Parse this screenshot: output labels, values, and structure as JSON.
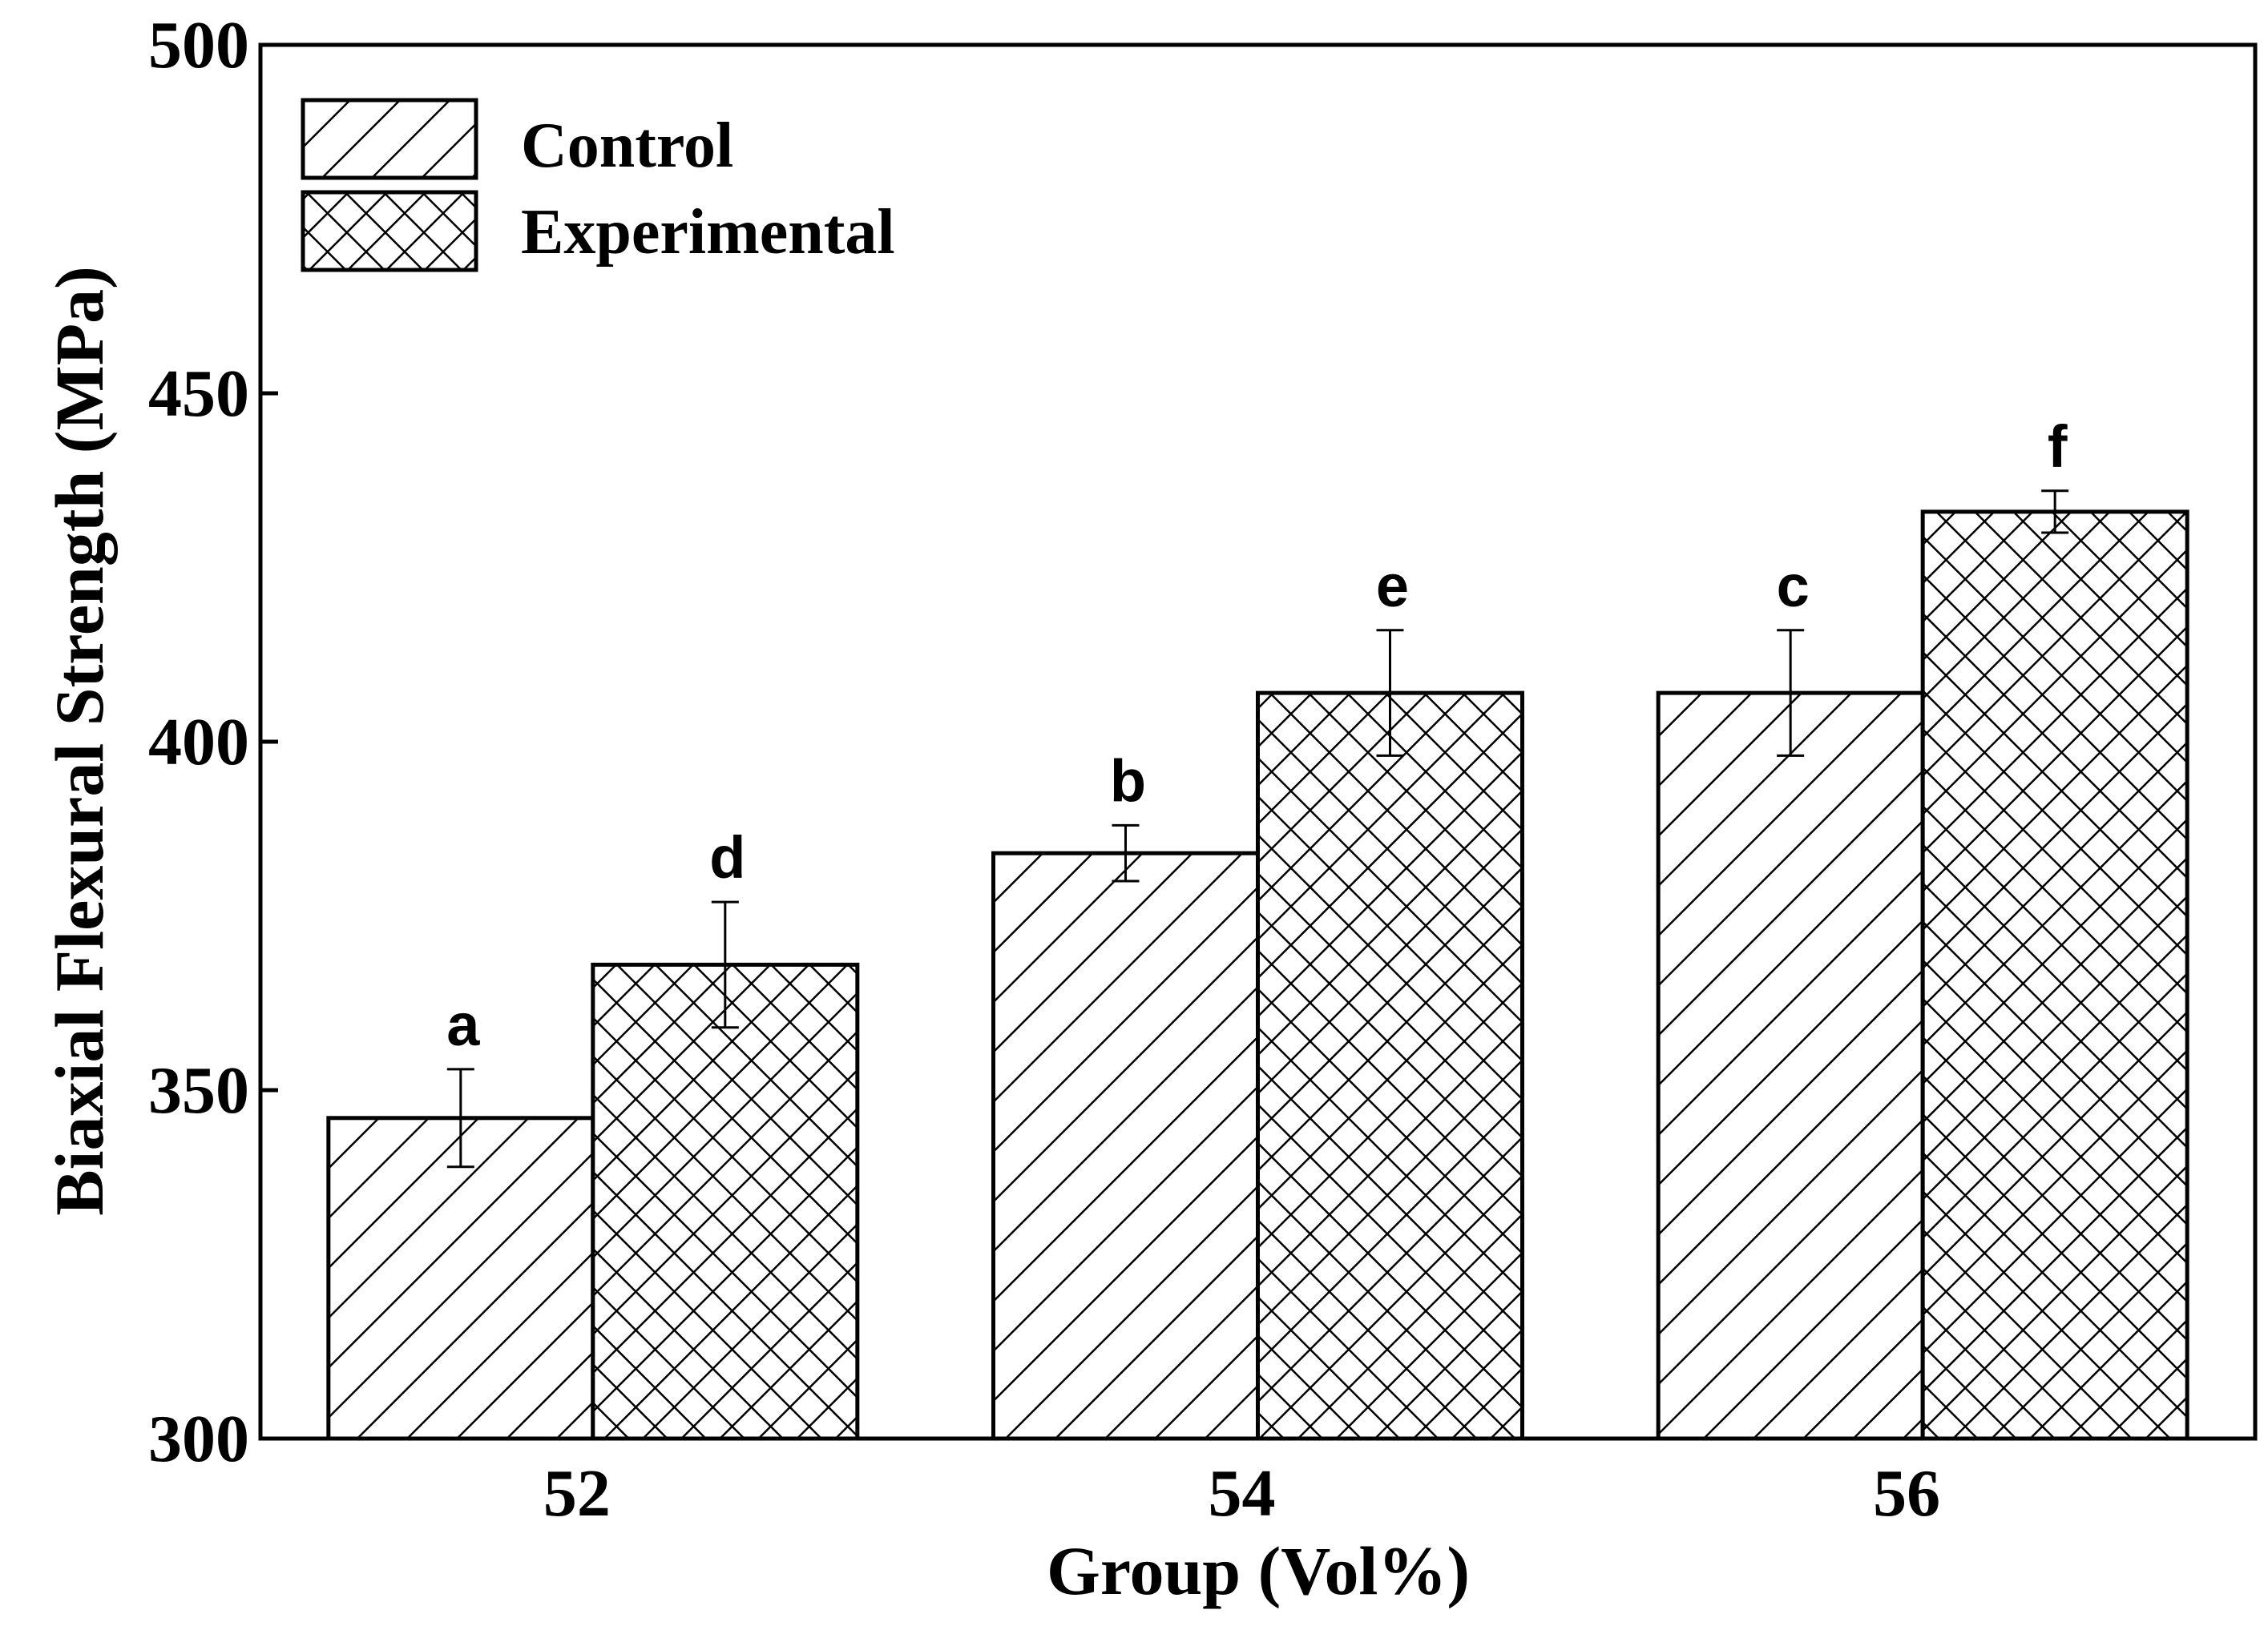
{
  "chart_data": {
    "type": "bar",
    "title": "",
    "xlabel": "Group (Vol%)",
    "ylabel": "Biaxial Flexural Strength (MPa)",
    "ylim": [
      300,
      500
    ],
    "yticks": [
      "300",
      "350",
      "400",
      "450",
      "500"
    ],
    "categories": [
      "52",
      "54",
      "56"
    ],
    "series": [
      {
        "name": "Control",
        "pattern": "diagonal-hatch",
        "values": [
          346,
          384,
          407
        ],
        "errors": [
          7,
          4,
          9
        ],
        "labels": [
          "a",
          "b",
          "c"
        ]
      },
      {
        "name": "Experimental",
        "pattern": "cross-hatch",
        "values": [
          368,
          407,
          433
        ],
        "errors": [
          9,
          9,
          3
        ],
        "labels": [
          "d",
          "e",
          "f"
        ]
      }
    ],
    "legend": {
      "position": "top-left",
      "entries": [
        "Control",
        "Experimental"
      ]
    },
    "grid": false,
    "colors": {
      "stroke": "#000000",
      "fill": "#ffffff"
    }
  }
}
